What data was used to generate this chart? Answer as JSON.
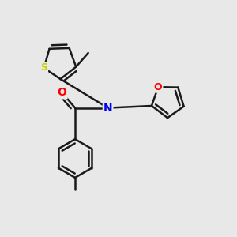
{
  "background_color": "#e8e8e8",
  "bond_color": "#1a1a1a",
  "bond_width": 1.8,
  "atom_colors": {
    "S": "#cccc00",
    "O": "#ff0000",
    "N": "#0000ee",
    "C": "#1a1a1a"
  }
}
